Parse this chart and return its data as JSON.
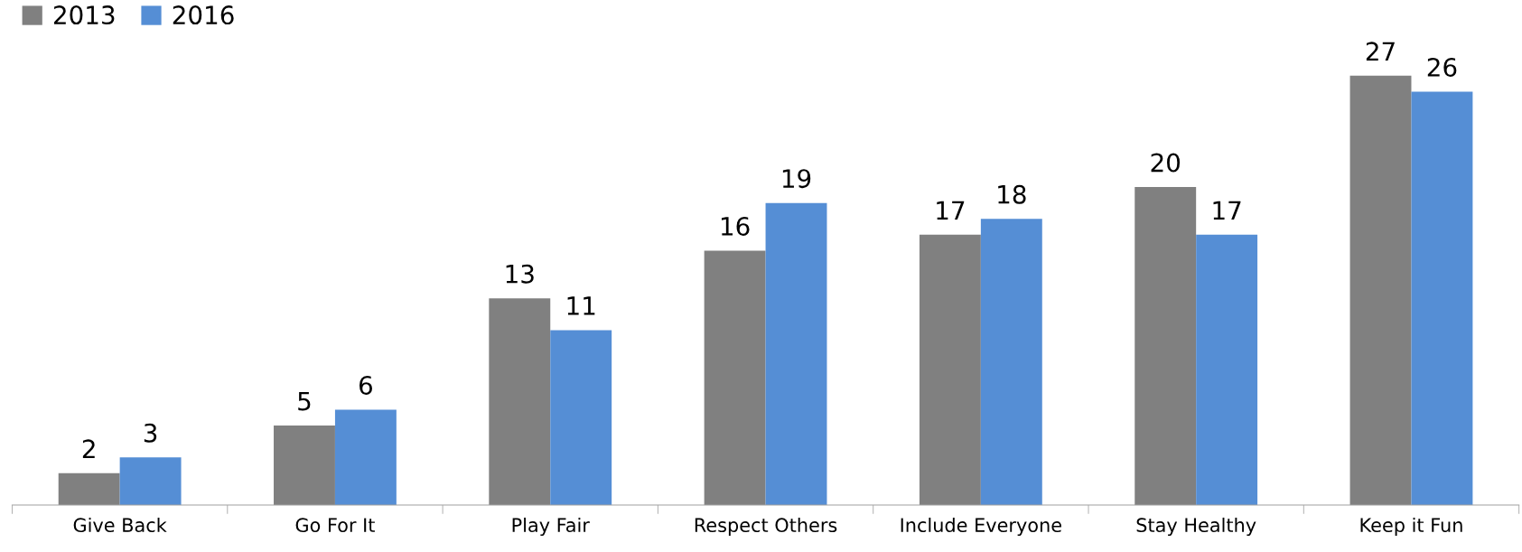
{
  "chart_data": {
    "type": "bar",
    "categories": [
      "Give Back",
      "Go For It",
      "Play Fair",
      "Respect Others",
      "Include Everyone",
      "Stay Healthy",
      "Keep it Fun"
    ],
    "series": [
      {
        "name": "2013",
        "color": "#808080",
        "values": [
          2,
          5,
          13,
          16,
          17,
          20,
          27
        ]
      },
      {
        "name": "2016",
        "color": "#558ed5",
        "values": [
          3,
          6,
          11,
          19,
          18,
          17,
          26
        ]
      }
    ],
    "data_labels": true,
    "legend": "top left",
    "grid": false
  }
}
